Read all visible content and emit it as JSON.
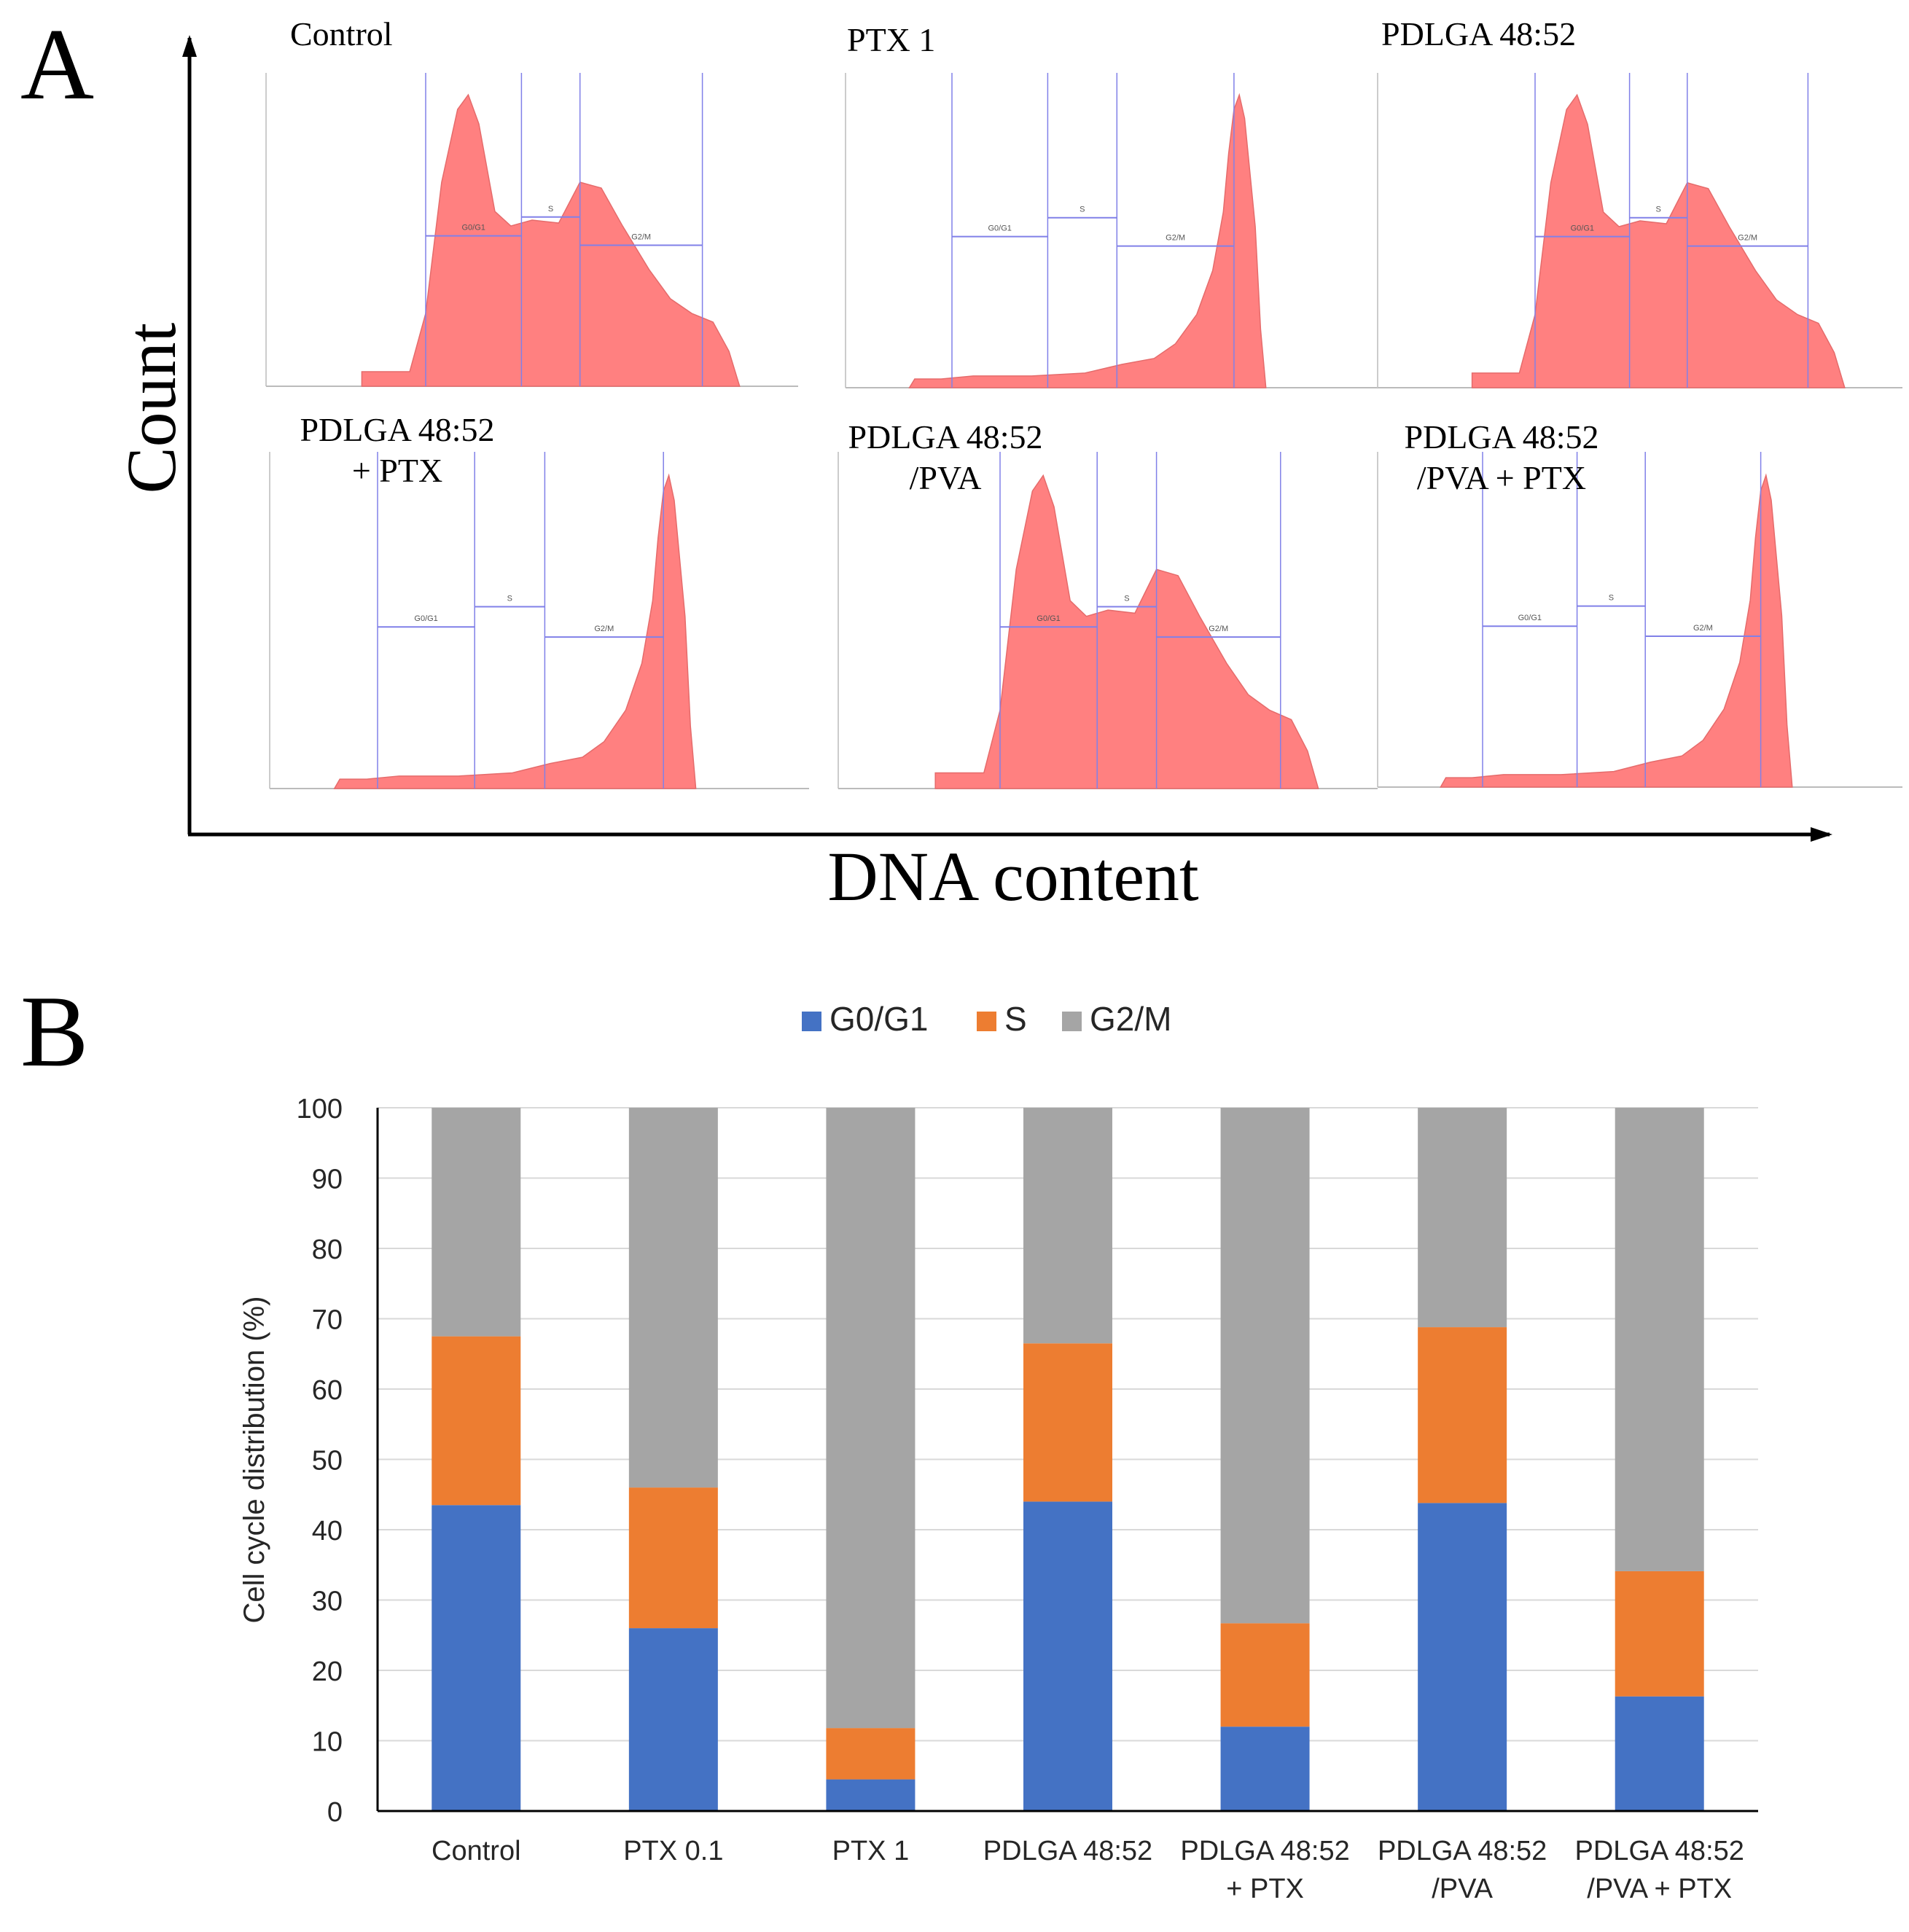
{
  "panel_a": {
    "letter": "A",
    "x_axis_label": "DNA content",
    "y_axis_label": "Count",
    "gate_labels": [
      "G0/G1",
      "S",
      "G2/M"
    ],
    "hist_color": "#FF8080",
    "gate_color": "#8080E8",
    "histograms": [
      {
        "title_lines": [
          "Control"
        ],
        "profile": "control"
      },
      {
        "title_lines": [
          "PTX 1"
        ],
        "profile": "g2peak"
      },
      {
        "title_lines": [
          "PDLGA 48:52"
        ],
        "profile": "control"
      },
      {
        "title_lines": [
          "PDLGA 48:52",
          "+ PTX"
        ],
        "profile": "g2peak"
      },
      {
        "title_lines": [
          "PDLGA 48:52",
          "/PVA"
        ],
        "profile": "control"
      },
      {
        "title_lines": [
          "PDLGA 48:52",
          "/PVA + PTX"
        ],
        "profile": "g2peak"
      }
    ]
  },
  "panel_b": {
    "letter": "B"
  },
  "chart_data": {
    "type": "bar",
    "stacked": true,
    "title": "",
    "xlabel": "",
    "ylabel": "Cell cycle distribution (%)",
    "ylim": [
      0,
      100
    ],
    "yticks": [
      0,
      10,
      20,
      30,
      40,
      50,
      60,
      70,
      80,
      90,
      100
    ],
    "grid": true,
    "legend_position": "top-center",
    "categories": [
      [
        "Control"
      ],
      [
        "PTX 0.1"
      ],
      [
        "PTX 1"
      ],
      [
        "PDLGA 48:52"
      ],
      [
        "PDLGA 48:52",
        "+ PTX"
      ],
      [
        "PDLGA 48:52",
        "/PVA"
      ],
      [
        "PDLGA 48:52",
        "/PVA + PTX"
      ]
    ],
    "series": [
      {
        "name": "G0/G1",
        "color": "#4472C4",
        "values": [
          43.5,
          26,
          4.5,
          44,
          12,
          43.8,
          16.3
        ]
      },
      {
        "name": "S",
        "color": "#ED7D31",
        "values": [
          24,
          20,
          7.3,
          22.5,
          14.7,
          25,
          17.8
        ]
      },
      {
        "name": "G2/M",
        "color": "#A5A5A5",
        "values": [
          32.5,
          54,
          88.2,
          33.5,
          73.3,
          31.2,
          65.9
        ]
      }
    ]
  }
}
